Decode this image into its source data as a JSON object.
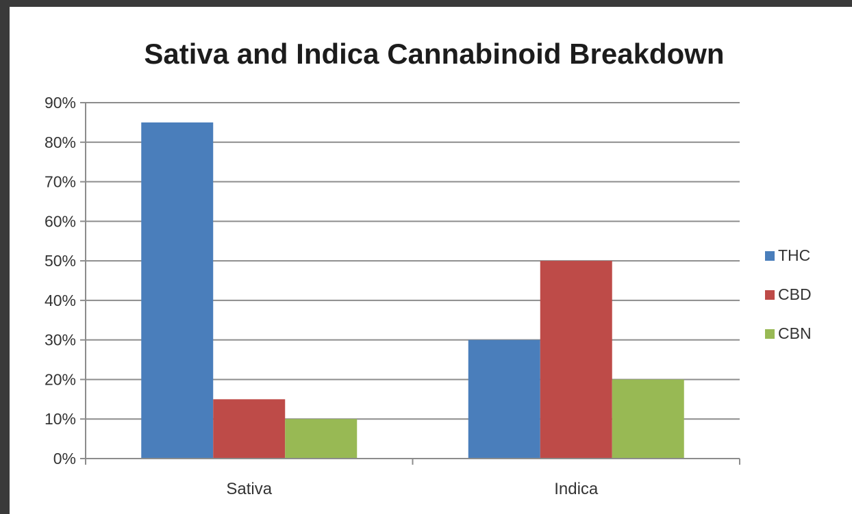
{
  "chart_data": {
    "type": "bar",
    "title": "Sativa and Indica Cannabinoid Breakdown",
    "categories": [
      "Sativa",
      "Indica"
    ],
    "series": [
      {
        "name": "THC",
        "values": [
          85,
          30
        ],
        "color": "#4a7ebb"
      },
      {
        "name": "CBD",
        "values": [
          15,
          50
        ],
        "color": "#be4b48"
      },
      {
        "name": "CBN",
        "values": [
          10,
          20
        ],
        "color": "#98b954"
      }
    ],
    "ylim": [
      0,
      90
    ],
    "yticks": [
      "0%",
      "10%",
      "20%",
      "30%",
      "40%",
      "50%",
      "60%",
      "70%",
      "80%",
      "90%"
    ],
    "grid": true,
    "legend_position": "right"
  }
}
